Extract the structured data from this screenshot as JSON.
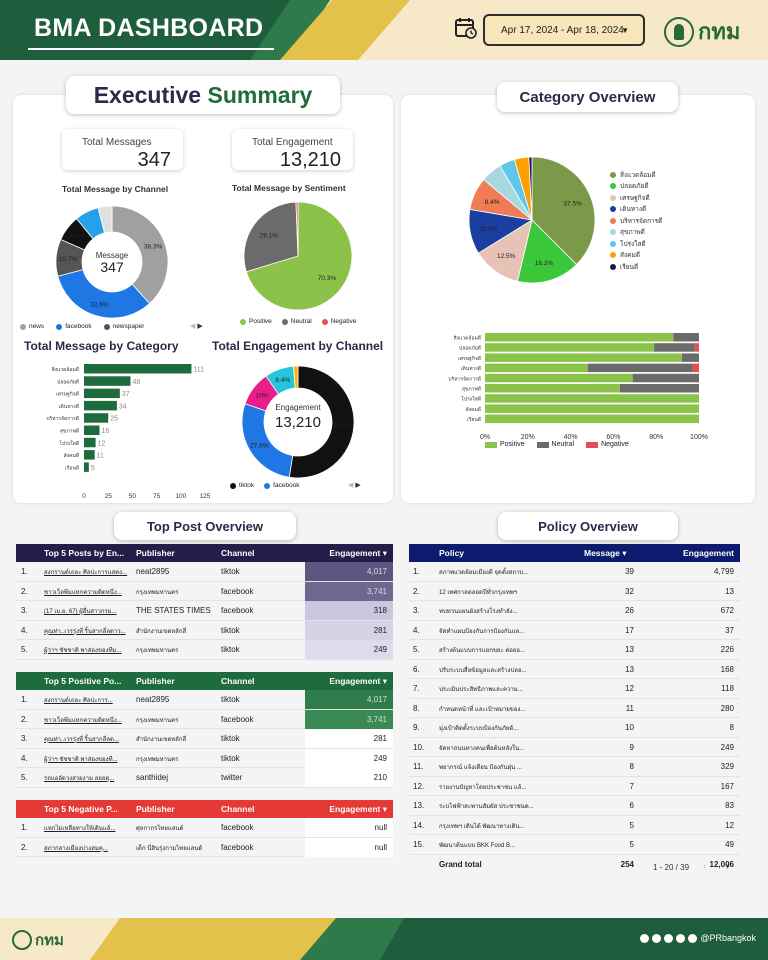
{
  "header": {
    "title": "BMA DASHBOARD",
    "date_range": "Apr 17, 2024 - Apr 18, 2024",
    "logo_text": "กทม"
  },
  "exec": {
    "title_part1": "Executive",
    "title_part2": "Summary",
    "total_messages_label": "Total Messages",
    "total_messages_value": "347",
    "total_engagement_label": "Total Engagement",
    "total_engagement_value": "13,210"
  },
  "channel_donut": {
    "title": "Total Message by Channel",
    "center_label": "Message",
    "center_value": "347",
    "legend": [
      "news",
      "facebook",
      "newspaper"
    ],
    "slices": [
      {
        "label": "38.3%",
        "value": 38.3,
        "color": "#a0a0a0"
      },
      {
        "label": "32.6%",
        "value": 32.6,
        "color": "#1f77e5"
      },
      {
        "label": "10.7%",
        "value": 10.7,
        "color": "#555555"
      },
      {
        "label": "7.5%",
        "value": 7.5,
        "color": "#111111"
      },
      {
        "label": "",
        "value": 6.9,
        "color": "#28a0e8"
      },
      {
        "label": "",
        "value": 4.0,
        "color": "#e0e0e0"
      }
    ],
    "colors": {
      "news": "#a0a0a0",
      "facebook": "#1f77e5",
      "newspaper": "#555555"
    }
  },
  "sentiment_pie": {
    "title": "Total Message by Sentiment",
    "legend": [
      "Positive",
      "Neutral",
      "Negative"
    ],
    "colors": [
      "#8bc34a",
      "#6b6b6b",
      "#e84c55"
    ],
    "slices": [
      {
        "label": "70.3%",
        "value": 70.3
      },
      {
        "label": "29.1%",
        "value": 29.1
      },
      {
        "label": "",
        "value": 0.6
      }
    ]
  },
  "category_bar": {
    "title": "Total Message by Category",
    "categories": [
      "สิ่งแวดล้อมดี",
      "ปลอดภัยดี",
      "เศรษฐกิจดี",
      "เดินทางดี",
      "บริหารจัดการดี",
      "สุขภาพดี",
      "โปร่งใสดี",
      "สังคมดี",
      "เรียนดี"
    ],
    "values": [
      111,
      48,
      37,
      34,
      25,
      16,
      12,
      11,
      5
    ],
    "ticks": [
      "0",
      "25",
      "50",
      "75",
      "100",
      "125"
    ],
    "xmax": 125,
    "color": "#1e6b3e"
  },
  "engagement_donut": {
    "title": "Total Engagement by Channel",
    "center_label": "Engagement",
    "center_value": "13,210",
    "legend": [
      "tiktok",
      "facebook"
    ],
    "slices": [
      {
        "label": "52.5%",
        "value": 52.5,
        "color": "#111111"
      },
      {
        "label": "27.8%",
        "value": 27.8,
        "color": "#1f77e5"
      },
      {
        "label": "10%",
        "value": 10.0,
        "color": "#e91e8c"
      },
      {
        "label": "8.4%",
        "value": 8.4,
        "color": "#26c6da"
      },
      {
        "label": "",
        "value": 1.3,
        "color": "#ffb300"
      }
    ]
  },
  "category_overview": {
    "title": "Category Overview",
    "pie": [
      {
        "name": "สิ่งแวดล้อมดี",
        "value": 37.5,
        "label": "37.5%",
        "color": "#7a9a4a"
      },
      {
        "name": "ปลอดภัยดี",
        "value": 16.2,
        "label": "16.2%",
        "color": "#3ac83a"
      },
      {
        "name": "เศรษฐกิจดี",
        "value": 12.5,
        "label": "12.5%",
        "color": "#e6c3b5"
      },
      {
        "name": "เดินทางดี",
        "value": 11.5,
        "label": "11.5%",
        "color": "#1a3fa0"
      },
      {
        "name": "บริหารจัดการดี",
        "value": 8.4,
        "label": "8.4%",
        "color": "#f07c55"
      },
      {
        "name": "สุขภาพดี",
        "value": 5.4,
        "label": "",
        "color": "#a6d8e0"
      },
      {
        "name": "โปร่งใสดี",
        "value": 4.0,
        "label": "",
        "color": "#5ec8e8"
      },
      {
        "name": "สังคมดี",
        "value": 3.7,
        "label": "",
        "color": "#ffa000"
      },
      {
        "name": "เรียนดี",
        "value": 0.8,
        "label": "",
        "color": "#1a1a4a"
      }
    ],
    "stacked": {
      "categories": [
        "สิ่งแวดล้อมดี",
        "ปลอดภัยดี",
        "เศรษฐกิจดี",
        "เดินทางดี",
        "บริหารจัดการดี",
        "สุขภาพดี",
        "โปร่งใสดี",
        "สังคมดี",
        "เรียนดี"
      ],
      "positive": [
        88,
        79,
        92,
        48,
        69,
        63,
        100,
        100,
        100
      ],
      "neutral": [
        12,
        19,
        8,
        49,
        31,
        37,
        0,
        0,
        0
      ],
      "negative": [
        0,
        2,
        0,
        3,
        0,
        0,
        0,
        0,
        0
      ],
      "ticks": [
        "0%",
        "20%",
        "40%",
        "60%",
        "80%",
        "100%"
      ],
      "legend": [
        "Positive",
        "Neutral",
        "Negative"
      ],
      "colors": [
        "#8bc34a",
        "#6b6b6b",
        "#e84c55"
      ]
    }
  },
  "top_post": {
    "title": "Top Post Overview",
    "tables": [
      {
        "color": "#241d4a",
        "headers": [
          "Top 5 Posts by En...",
          "Publisher",
          "Channel",
          "Engagement ▾"
        ],
        "rows": [
          {
            "n": "1.",
            "post": "สงกรานต์เถอะ ศิลปะการแสดง...",
            "publisher": "neat2895",
            "channel": "tiktok",
            "eng": "4,017"
          },
          {
            "n": "2.",
            "post": "ชาวเว็ลพีมแหกความติดหนึ่ง...",
            "publisher": "กรุงเทพมหานคร",
            "channel": "facebook",
            "eng": "3,741"
          },
          {
            "n": "3.",
            "post": "(17 เม.ย. 67) ผู้อื่นสาวกรม...",
            "publisher": "THE STATES TIMES",
            "channel": "facebook",
            "eng": "318"
          },
          {
            "n": "4.",
            "post": "คุณท่า..เวรรุ่งที่ ริ้นสากลี่ลดาว...",
            "publisher": "สำนักงานเขตหลักสี่",
            "channel": "tiktok",
            "eng": "281"
          },
          {
            "n": "5.",
            "post": "ผู้ว่าฯ ชัชชาติ พาส่องของทีม...",
            "publisher": "กรุงเทพมหานคร",
            "channel": "tiktok",
            "eng": "249"
          }
        ],
        "eng_colors": [
          "#5d5680",
          "#6e6890",
          "#c9c6de",
          "#d6d3e7",
          "#dedbed"
        ]
      },
      {
        "color": "#1e6b3e",
        "headers": [
          "Top 5 Positive Po...",
          "Publisher",
          "Channel",
          "Engagement ▾"
        ],
        "rows": [
          {
            "n": "1.",
            "post": "สงกรานต์เถอะ ศิลปะการ...",
            "publisher": "neat2895",
            "channel": "tiktok",
            "eng": "4,017"
          },
          {
            "n": "2.",
            "post": "ชาวเว็ลพีมแหกความติดหนึ่ง...",
            "publisher": "กรุงเทพมหานคร",
            "channel": "facebook",
            "eng": "3,741"
          },
          {
            "n": "3.",
            "post": "คุณท่า..เวรรุ่งที่ ริ้นสากลี่ลด...",
            "publisher": "สำนักงานเขตหลักสี่",
            "channel": "tiktok",
            "eng": "281"
          },
          {
            "n": "4.",
            "post": "ผู้ว่าฯ ชัชชาติ พาส่องของที...",
            "publisher": "กรุงเทพมหานคร",
            "channel": "tiktok",
            "eng": "249"
          },
          {
            "n": "5.",
            "post": "รถแออัดวงสวยงาม ลอยตุ...",
            "publisher": "santhidej",
            "channel": "twitter",
            "eng": "210"
          }
        ],
        "eng_colors": [
          "#2e7d4a",
          "#3b8a55",
          "#ffffff",
          "#ffffff",
          "#ffffff"
        ]
      },
      {
        "color": "#e53935",
        "headers": [
          "Top 5 Negative P...",
          "Publisher",
          "Channel",
          "Engagement ▾"
        ],
        "rows": [
          {
            "n": "1.",
            "post": "แหกไม่เหลือทางให้เดินแล้...",
            "publisher": "ศุลกากรไทยแลนด์",
            "channel": "facebook",
            "eng": "null"
          },
          {
            "n": "2.",
            "post": "สภากลางเมืองบ่างสมคุ...",
            "publisher": "เด็ก นี่สินรุ่งกามไทยแลนด์",
            "channel": "facebook",
            "eng": "null"
          }
        ],
        "eng_colors": [
          "#ffffff",
          "#ffffff"
        ]
      }
    ]
  },
  "policy": {
    "title": "Policy Overview",
    "headers": [
      "Policy",
      "Message ▾",
      "Engagement"
    ],
    "rows": [
      {
        "n": "1.",
        "policy": "สภาพแวดล้อมเมืองดี จุดตั้งสถาบ...",
        "message": "39",
        "engagement": "4,799"
      },
      {
        "n": "2.",
        "policy": "12 เทศกาลตลอดปีทั่วกรุงเทพฯ",
        "message": "32",
        "engagement": "13"
      },
      {
        "n": "3.",
        "policy": "ทบทวนแผนผังสร้างโรงทำลัง...",
        "message": "26",
        "engagement": "672"
      },
      {
        "n": "4.",
        "policy": "จัดทำแผนป้องกันการป้องกันแล...",
        "message": "17",
        "engagement": "37"
      },
      {
        "n": "5.",
        "policy": "สร้างต้นแบบการแยกขยะ ต่อยอ...",
        "message": "13",
        "engagement": "226"
      },
      {
        "n": "6.",
        "policy": "ปรับระบบสื่อข้อมูลและสร้างปลอ...",
        "message": "13",
        "engagement": "168"
      },
      {
        "n": "7.",
        "policy": "ประเมินประสิทธิภาพและความ...",
        "message": "12",
        "engagement": "118"
      },
      {
        "n": "8.",
        "policy": "กำหนดหน้าที่ และเป้าหมายของ...",
        "message": "11",
        "engagement": "280"
      },
      {
        "n": "9.",
        "policy": "มุ่งเป้าติดตั้งระบบป้องกันภัยด้...",
        "message": "10",
        "engagement": "8"
      },
      {
        "n": "10.",
        "policy": "จัดหาถนนทางคนเพื่อต้นหลังใน...",
        "message": "9",
        "engagement": "249"
      },
      {
        "n": "11.",
        "policy": "พยากรณ์ แจ้งเตือน ป้องกันฝุ่น ...",
        "message": "8",
        "engagement": "329"
      },
      {
        "n": "12.",
        "policy": "รายงานปัญหาโดยประชาชน แล้...",
        "message": "7",
        "engagement": "167"
      },
      {
        "n": "13.",
        "policy": "ระบไฟฟ้าสะพานสัมผัส ประชาชนด...",
        "message": "6",
        "engagement": "83"
      },
      {
        "n": "14.",
        "policy": "กรุงเทพฯ เดินได้ พัฒนาทางเดิน...",
        "message": "5",
        "engagement": "12"
      },
      {
        "n": "15.",
        "policy": "พัฒนาต้นแบบ BKK Food B...",
        "message": "5",
        "engagement": "49"
      }
    ],
    "grand_total_label": "Grand total",
    "grand_total_message": "254",
    "grand_total_engagement": "12,006",
    "pagination": "1 - 20 / 39"
  },
  "footer": {
    "logo_text": "กทม",
    "handle": "@PRbangkok"
  }
}
